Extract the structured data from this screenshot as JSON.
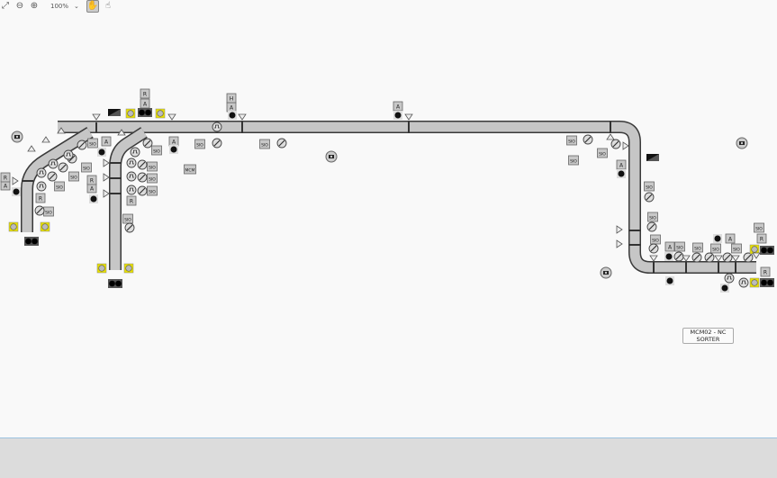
{
  "toolbar": {
    "zoom_level": "100%",
    "icons": [
      "fit-screen-icon",
      "zoom-out-icon",
      "zoom-in-icon",
      "chevron-down-icon",
      "pan-hand-icon",
      "pointer-hand-icon"
    ]
  },
  "labels": {
    "sio": "SIO",
    "a": "A",
    "r": "R",
    "h": "H",
    "mcm": "MCM"
  },
  "area_label": {
    "line1": "MCM02 - NC",
    "line2": "SORTER"
  },
  "colors": {
    "conveyor": "#c6c6c6",
    "outline": "#3a3a3a",
    "box": "#c8c8c8",
    "yellow": "#e8e000",
    "dot": "#111111"
  }
}
